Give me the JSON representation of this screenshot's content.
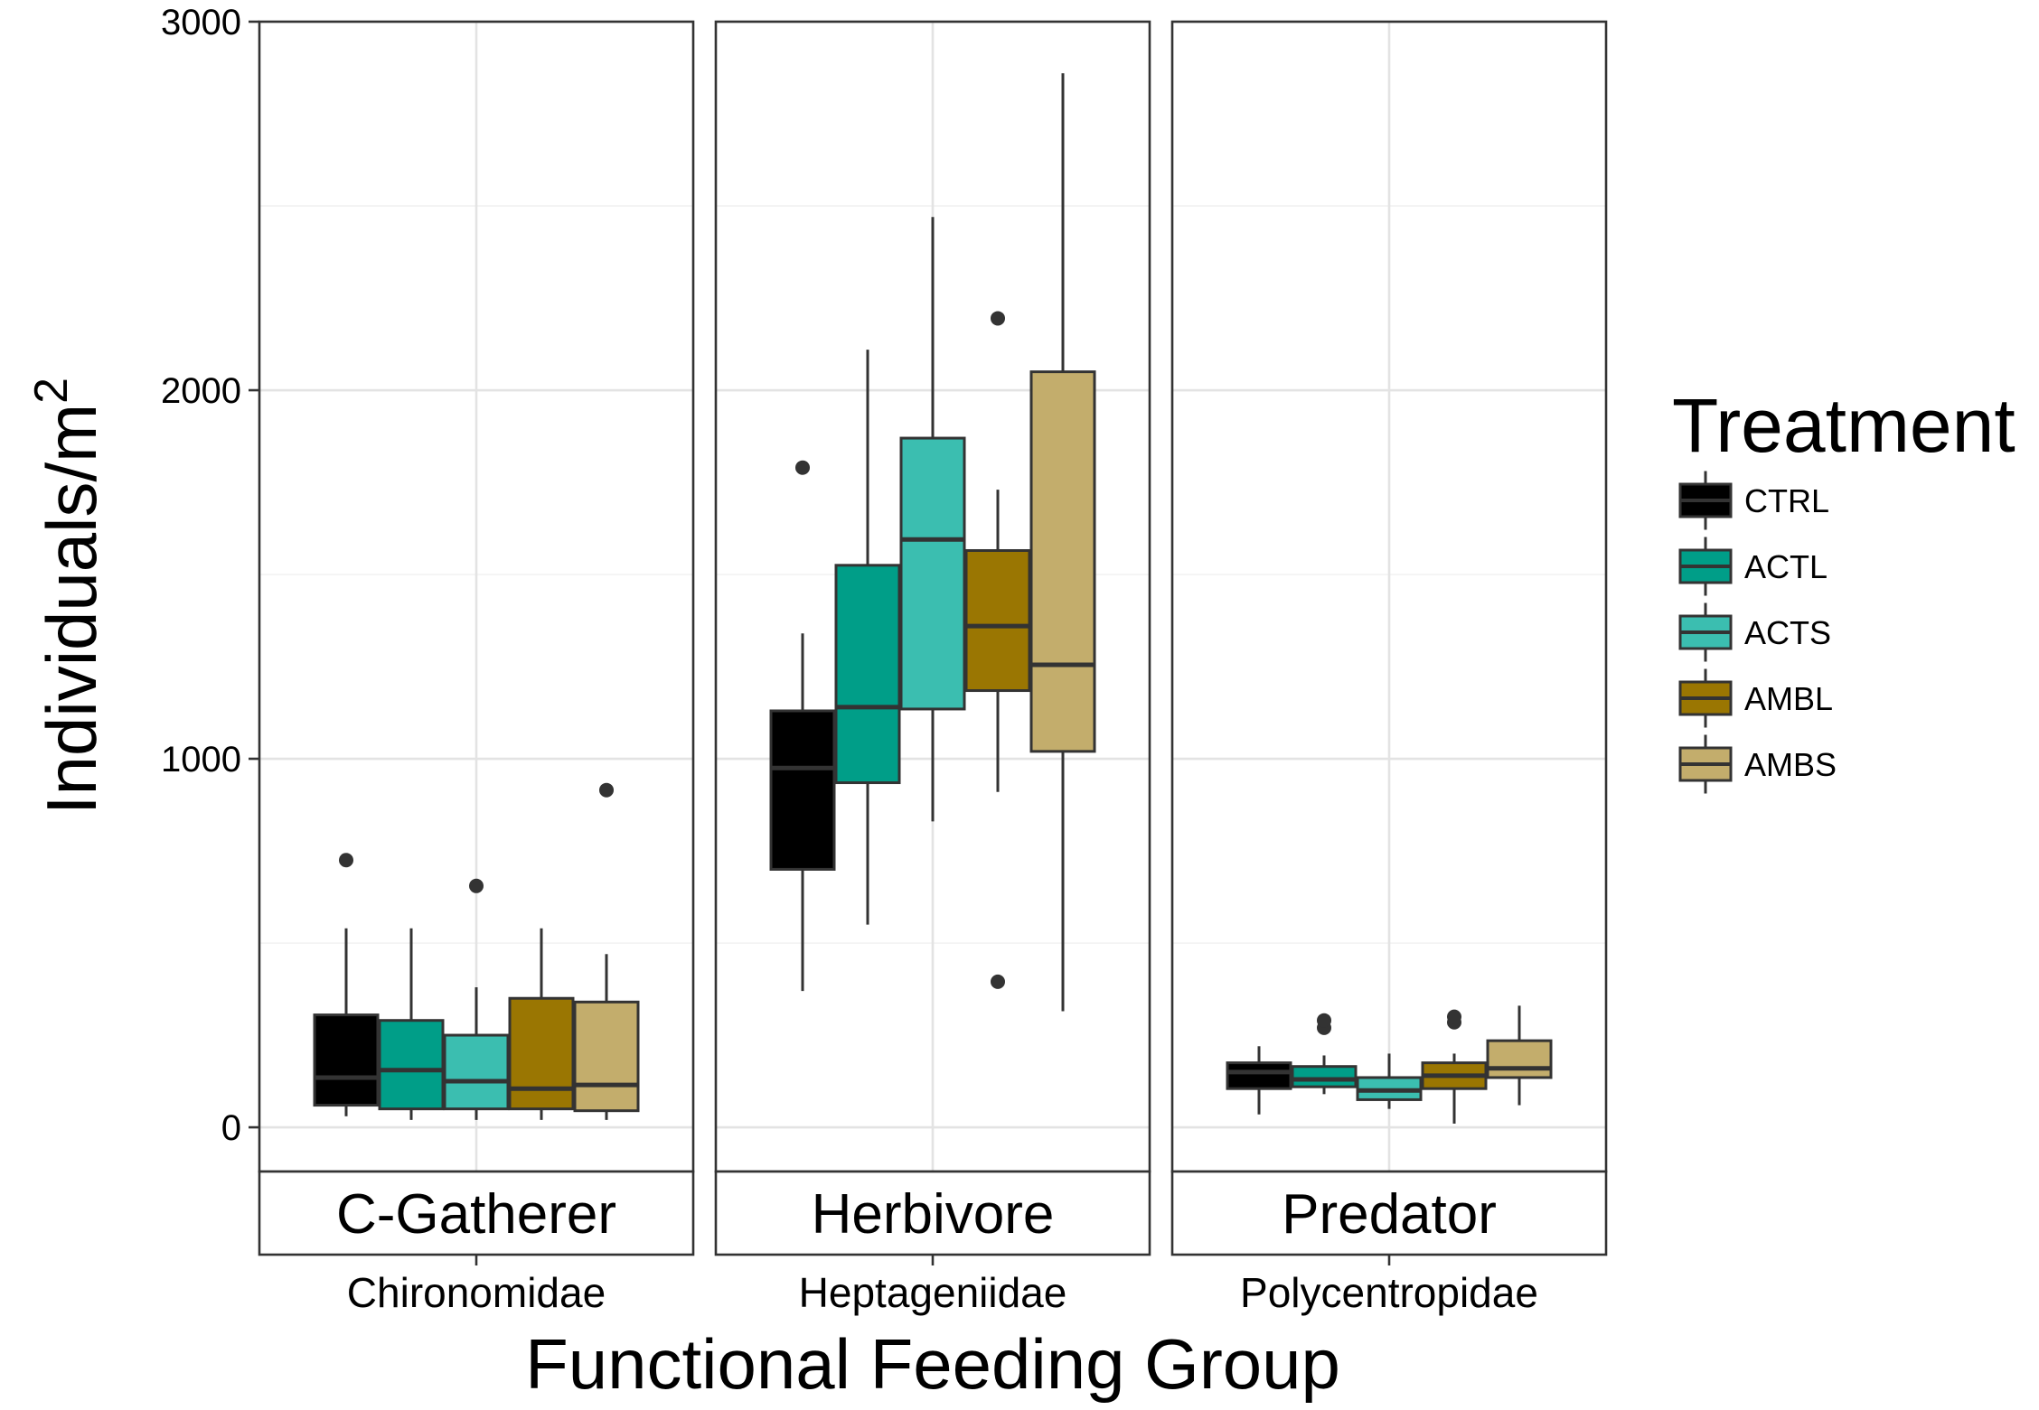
{
  "chart_data": {
    "type": "boxplot",
    "xlabel": "Functional Feeding Group",
    "ylabel_main": "Individuals",
    "ylabel_unit": "m",
    "ylabel_exponent": "2",
    "ylim": [
      -120,
      3000
    ],
    "yticks": [
      0,
      1000,
      2000,
      3000
    ],
    "grid": true,
    "legend": {
      "title": "Treatment",
      "position": "right",
      "entries": [
        {
          "name": "CTRL",
          "color": "#000000"
        },
        {
          "name": "ACTL",
          "color": "#009E88"
        },
        {
          "name": "ACTS",
          "color": "#3BBEB0"
        },
        {
          "name": "AMBL",
          "color": "#9A7602"
        },
        {
          "name": "AMBS",
          "color": "#C3AD6C"
        }
      ]
    },
    "facets": [
      {
        "strip": "C-Gatherer",
        "category": "Chironomidae",
        "boxes": [
          {
            "treatment": "CTRL",
            "lower_whisker": 30,
            "q1": 60,
            "median": 135,
            "q3": 305,
            "upper_whisker": 540,
            "outliers": [
              725
            ]
          },
          {
            "treatment": "ACTL",
            "lower_whisker": 20,
            "q1": 50,
            "median": 155,
            "q3": 290,
            "upper_whisker": 540,
            "outliers": []
          },
          {
            "treatment": "ACTS",
            "lower_whisker": 20,
            "q1": 50,
            "median": 125,
            "q3": 250,
            "upper_whisker": 380,
            "outliers": [
              655
            ]
          },
          {
            "treatment": "AMBL",
            "lower_whisker": 20,
            "q1": 50,
            "median": 105,
            "q3": 350,
            "upper_whisker": 540,
            "outliers": []
          },
          {
            "treatment": "AMBS",
            "lower_whisker": 20,
            "q1": 45,
            "median": 115,
            "q3": 340,
            "upper_whisker": 470,
            "outliers": [
              915
            ]
          }
        ]
      },
      {
        "strip": "Herbivore",
        "category": "Heptageniidae",
        "boxes": [
          {
            "treatment": "CTRL",
            "lower_whisker": 370,
            "q1": 700,
            "median": 975,
            "q3": 1130,
            "upper_whisker": 1340,
            "outliers": [
              1790
            ]
          },
          {
            "treatment": "ACTL",
            "lower_whisker": 550,
            "q1": 935,
            "median": 1140,
            "q3": 1525,
            "upper_whisker": 2110,
            "outliers": []
          },
          {
            "treatment": "ACTS",
            "lower_whisker": 830,
            "q1": 1135,
            "median": 1595,
            "q3": 1870,
            "upper_whisker": 2470,
            "outliers": []
          },
          {
            "treatment": "AMBL",
            "lower_whisker": 910,
            "q1": 1185,
            "median": 1360,
            "q3": 1565,
            "upper_whisker": 1730,
            "outliers": [
              395,
              2195
            ]
          },
          {
            "treatment": "AMBS",
            "lower_whisker": 315,
            "q1": 1020,
            "median": 1255,
            "q3": 2050,
            "upper_whisker": 2860,
            "outliers": []
          }
        ]
      },
      {
        "strip": "Predator",
        "category": "Polycentropidae",
        "boxes": [
          {
            "treatment": "CTRL",
            "lower_whisker": 35,
            "q1": 105,
            "median": 150,
            "q3": 175,
            "upper_whisker": 220,
            "outliers": []
          },
          {
            "treatment": "ACTL",
            "lower_whisker": 90,
            "q1": 110,
            "median": 130,
            "q3": 165,
            "upper_whisker": 195,
            "outliers": [
              270,
              290
            ]
          },
          {
            "treatment": "ACTS",
            "lower_whisker": 50,
            "q1": 75,
            "median": 100,
            "q3": 135,
            "upper_whisker": 200,
            "outliers": []
          },
          {
            "treatment": "AMBL",
            "lower_whisker": 10,
            "q1": 105,
            "median": 140,
            "q3": 175,
            "upper_whisker": 200,
            "outliers": [
              285,
              300
            ]
          },
          {
            "treatment": "AMBS",
            "lower_whisker": 60,
            "q1": 135,
            "median": 160,
            "q3": 235,
            "upper_whisker": 330,
            "outliers": []
          }
        ]
      }
    ]
  }
}
